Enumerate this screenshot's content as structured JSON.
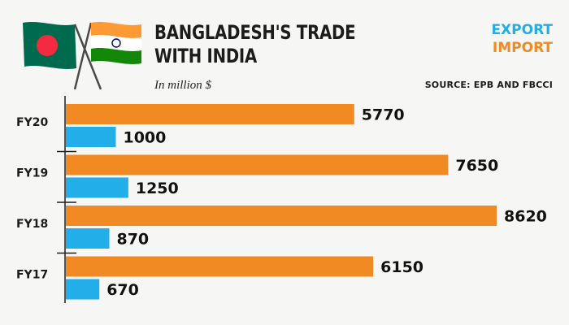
{
  "header": {
    "title_line1": "BANGLADESH'S TRADE",
    "title_line2": "WITH INDIA",
    "unit": "In million $",
    "source": "SOURCE: EPB AND FBCCI"
  },
  "flags": [
    {
      "name": "bangladesh-flag-icon",
      "field": "#006a4e",
      "disc": "#f42a41"
    },
    {
      "name": "india-flag-icon",
      "top": "#ff9933",
      "middle": "#ffffff",
      "bottom": "#138808",
      "wheel": "#000080"
    }
  ],
  "chart_data": {
    "type": "bar",
    "orientation": "horizontal",
    "categories": [
      "FY20",
      "FY19",
      "FY18",
      "FY17"
    ],
    "series": [
      {
        "name": "IMPORT",
        "color": "#f18a22",
        "values": [
          5770,
          7650,
          8620,
          6150
        ]
      },
      {
        "name": "EXPORT",
        "color": "#22aee8",
        "values": [
          1000,
          1250,
          870,
          670
        ]
      }
    ],
    "xlim": [
      0,
      8620
    ],
    "grid": false,
    "legend": "top-right"
  },
  "legend_order": [
    "EXPORT",
    "IMPORT"
  ]
}
